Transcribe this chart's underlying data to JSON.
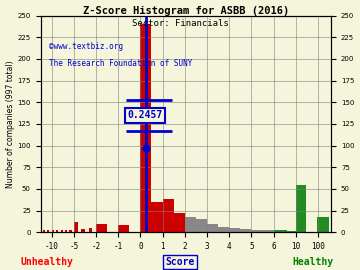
{
  "title": "Z-Score Histogram for ASBB (2016)",
  "subtitle": "Sector: Financials",
  "watermark1": "©www.textbiz.org",
  "watermark2": "The Research Foundation of SUNY",
  "total_companies": 997,
  "asbb_zscore": 0.2457,
  "xlabel_left": "Unhealthy",
  "xlabel_center": "Score",
  "xlabel_right": "Healthy",
  "ylabel_left": "Number of companies (997 total)",
  "background_color": "#f5f5dc",
  "red_color": "#cc0000",
  "gray_color": "#888888",
  "green_color": "#228B22",
  "blue_color": "#0000cc",
  "grid_color": "#808080",
  "yticks": [
    0,
    25,
    50,
    75,
    100,
    125,
    150,
    175,
    200,
    225,
    250
  ],
  "xtick_real": [
    -10,
    -5,
    -2,
    -1,
    0,
    1,
    2,
    3,
    4,
    5,
    6,
    10,
    100
  ],
  "xtick_labels": [
    "-10",
    "-5",
    "-2",
    "-1",
    "0",
    "1",
    "2",
    "3",
    "4",
    "5",
    "6",
    "10",
    "100"
  ],
  "bars_red": [
    [
      -12,
      3
    ],
    [
      -11,
      2
    ],
    [
      -10,
      2
    ],
    [
      -9,
      2
    ],
    [
      -8,
      3
    ],
    [
      -7,
      3
    ],
    [
      -6,
      3
    ],
    [
      -5,
      12
    ],
    [
      -4,
      4
    ],
    [
      -3,
      5
    ],
    [
      -2,
      10
    ],
    [
      -1,
      8
    ],
    [
      0,
      240
    ],
    [
      0.5,
      35
    ],
    [
      1.0,
      38
    ],
    [
      1.5,
      22
    ]
  ],
  "bars_gray": [
    [
      2.0,
      18
    ],
    [
      2.5,
      15
    ],
    [
      3.0,
      10
    ],
    [
      3.5,
      6
    ],
    [
      4.0,
      5
    ],
    [
      4.5,
      4
    ],
    [
      5.0,
      3
    ],
    [
      5.5,
      3
    ]
  ],
  "bars_green_small": [
    [
      6.0,
      3
    ],
    [
      6.5,
      2
    ],
    [
      7.0,
      2
    ],
    [
      7.5,
      2
    ],
    [
      8.0,
      2
    ],
    [
      8.5,
      1
    ],
    [
      9.0,
      1
    ],
    [
      9.5,
      1
    ]
  ],
  "bar_10_height": 55,
  "bar_100_height": 18
}
